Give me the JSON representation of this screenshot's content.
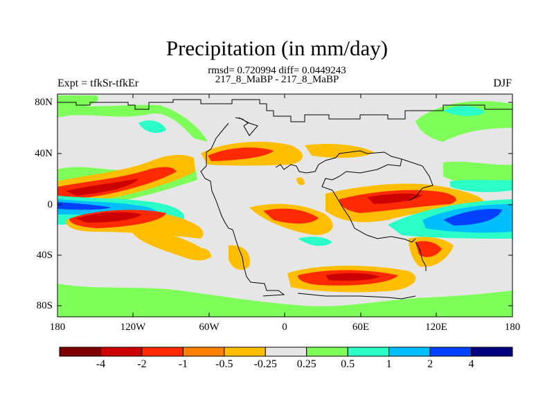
{
  "title": "Precipitation (in mm/day)",
  "stats": "rmsd= 0.720994 diff= 0.0449243",
  "subtitle": "217_8_MaBP - 217_8_MaBP",
  "experiment": "Expt = tfkSr-tfkEr",
  "season": "DJF",
  "lat_ticks": [
    "80N",
    "40N",
    "0",
    "40S",
    "80S"
  ],
  "lon_ticks": [
    "180",
    "120W",
    "60W",
    "0",
    "60E",
    "120E",
    "180"
  ],
  "colorbar": {
    "labels": [
      "-4",
      "-2",
      "-1",
      "-0.5",
      "-0.25",
      "0.25",
      "0.5",
      "1",
      "2",
      "4"
    ],
    "colors": [
      "#7f0000",
      "#cc0000",
      "#ff2a00",
      "#ff7f00",
      "#ffbf00",
      "#e6e6e6",
      "#7fff5a",
      "#2affc8",
      "#00bfff",
      "#0040ff",
      "#00007f"
    ]
  },
  "map_colors": {
    "neutral": "#e6e6e6",
    "coastline": "#000000"
  }
}
